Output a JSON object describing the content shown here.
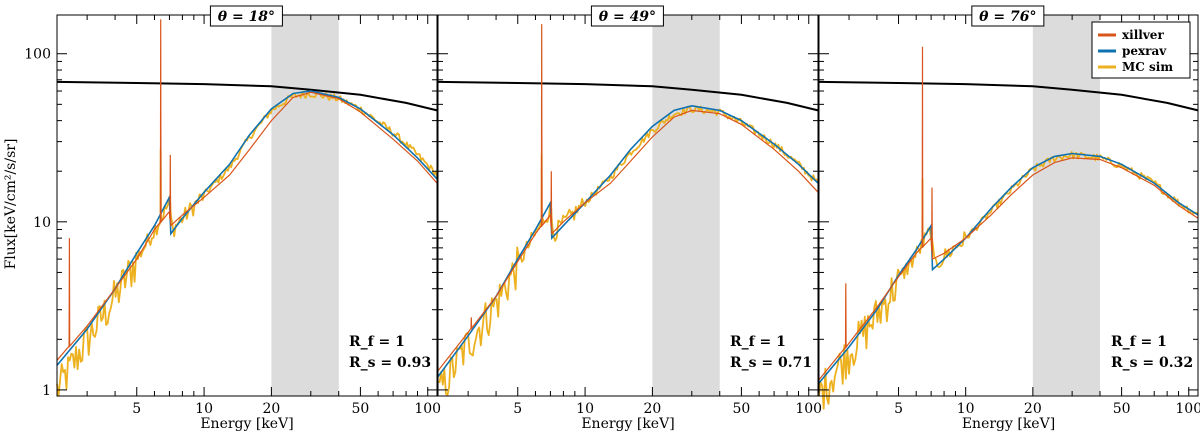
{
  "chart_data": {
    "type": "line",
    "ylabel": "Flux[keV/cm²/s/sr]",
    "xscale": "log",
    "yscale": "log",
    "xlim": [
      2.2,
      110
    ],
    "ylim": [
      0.92,
      170
    ],
    "x_ticks": [
      5,
      10,
      20,
      50,
      100
    ],
    "x_tick_labels": [
      "5",
      "10",
      "20",
      "50",
      "100"
    ],
    "y_ticks": [
      1,
      10,
      100
    ],
    "y_tick_labels": [
      "1",
      "10",
      "100"
    ],
    "band": [
      20,
      40
    ],
    "legend": [
      {
        "name": "xillver",
        "color": "#d9541a"
      },
      {
        "name": "pexrav",
        "color": "#0f72b0"
      },
      {
        "name": "MC sim",
        "color": "#edb120"
      }
    ],
    "black_line": {
      "x": [
        2.2,
        5,
        10,
        20,
        30,
        50,
        80,
        110
      ],
      "y": [
        68,
        67,
        66,
        64,
        61,
        57,
        51,
        46
      ]
    },
    "panels": [
      {
        "title": "θ = 18°",
        "xlabel": "Energy [keV]",
        "ann_rf": "R_f = 1",
        "ann_rs": "R_s = 0.93",
        "pexrav": {
          "x": [
            2.2,
            3,
            4,
            5,
            6,
            7,
            7.1,
            8,
            10,
            13,
            16,
            20,
            25,
            30,
            40,
            50,
            70,
            90,
            110
          ],
          "y": [
            1.4,
            2.3,
            4,
            6.5,
            9.5,
            14,
            8.5,
            10.5,
            15,
            22,
            33,
            47,
            58,
            60,
            55,
            47,
            33,
            24,
            18
          ]
        },
        "xillver": {
          "x": [
            2.2,
            3,
            4,
            5,
            6,
            7,
            7.1,
            8,
            10,
            13,
            16,
            20,
            25,
            30,
            40,
            50,
            70,
            90,
            110
          ],
          "y": [
            1.5,
            2.4,
            4,
            6,
            9,
            11.5,
            9.5,
            11,
            14,
            19,
            27,
            40,
            55,
            59,
            54,
            45,
            31,
            23,
            17
          ]
        },
        "xillver_lines": [
          {
            "x": 2.5,
            "y": 8
          },
          {
            "x": 6.4,
            "y": 160
          },
          {
            "x": 7.06,
            "y": 25
          }
        ],
        "mc": {
          "x": [
            2.2,
            3,
            4,
            5,
            6,
            7,
            7.2,
            8,
            10,
            13,
            16,
            20,
            25,
            30,
            40,
            50,
            70,
            90,
            110
          ],
          "y": [
            1.0,
            2.0,
            3.6,
            6,
            9,
            13,
            9,
            10.5,
            14.5,
            21,
            32,
            46,
            56,
            58,
            54,
            47,
            34,
            25,
            19
          ]
        },
        "mc_lines": [
          {
            "x": 6.4,
            "y": 27
          },
          {
            "x": 7.06,
            "y": 13
          }
        ]
      },
      {
        "title": "θ = 49°",
        "xlabel": "Energy [keV]",
        "ann_rf": "R_f = 1",
        "ann_rs": "R_s = 0.71",
        "pexrav": {
          "x": [
            2.2,
            3,
            4,
            5,
            6,
            7,
            7.1,
            8,
            10,
            13,
            16,
            20,
            25,
            30,
            40,
            50,
            70,
            90,
            110
          ],
          "y": [
            1.2,
            2.1,
            3.6,
            6,
            9,
            13,
            8,
            9.5,
            13,
            19,
            27,
            37,
            46,
            49,
            46,
            40,
            29,
            22,
            17
          ]
        },
        "xillver": {
          "x": [
            2.2,
            3,
            4,
            5,
            6,
            7,
            7.1,
            8,
            10,
            13,
            16,
            20,
            25,
            30,
            40,
            50,
            70,
            90,
            110
          ],
          "y": [
            1.3,
            2.2,
            3.6,
            5.8,
            8.5,
            11,
            8.5,
            10,
            13,
            17,
            23,
            32,
            42,
            46,
            44,
            38,
            27,
            20,
            15
          ]
        },
        "xillver_lines": [
          {
            "x": 3.1,
            "y": 2.7
          },
          {
            "x": 6.4,
            "y": 150
          },
          {
            "x": 7.06,
            "y": 20
          }
        ],
        "mc": {
          "x": [
            2.2,
            3,
            4,
            5,
            6,
            7,
            7.2,
            8,
            10,
            13,
            16,
            20,
            25,
            30,
            40,
            50,
            70,
            90,
            110
          ],
          "y": [
            0.95,
            1.9,
            3.3,
            5.6,
            8.5,
            12,
            8.5,
            9.8,
            13,
            18.5,
            26,
            35,
            44,
            47,
            45,
            39,
            29,
            22,
            17
          ]
        },
        "mc_lines": [
          {
            "x": 6.4,
            "y": 25
          },
          {
            "x": 7.06,
            "y": 12
          }
        ]
      },
      {
        "title": "θ = 76°",
        "xlabel": "Energy [keV]",
        "ann_rf": "R_f = 1",
        "ann_rs": "R_s = 0.32",
        "pexrav": {
          "x": [
            2.2,
            3,
            4,
            5,
            6,
            7,
            7.1,
            8,
            10,
            13,
            16,
            20,
            25,
            30,
            40,
            50,
            70,
            90,
            110
          ],
          "y": [
            1.1,
            1.8,
            3,
            4.8,
            6.8,
            9.5,
            5.2,
            6,
            8,
            12,
            16,
            21,
            24.5,
            25.5,
            24.5,
            22,
            17,
            13,
            11
          ]
        },
        "xillver": {
          "x": [
            2.2,
            3,
            4,
            5,
            6,
            7,
            7.1,
            8,
            10,
            13,
            16,
            20,
            25,
            30,
            40,
            50,
            70,
            90,
            110
          ],
          "y": [
            1.15,
            1.9,
            3.1,
            4.7,
            6.5,
            8,
            6,
            6.5,
            8,
            11,
            14.5,
            19,
            22.5,
            24,
            23.5,
            21,
            16.5,
            12.5,
            10.5
          ]
        },
        "xillver_lines": [
          {
            "x": 2.9,
            "y": 4.3
          },
          {
            "x": 6.4,
            "y": 110
          },
          {
            "x": 7.06,
            "y": 16
          }
        ],
        "mc": {
          "x": [
            2.2,
            3,
            4,
            5,
            6,
            7,
            7.2,
            8,
            10,
            13,
            16,
            20,
            25,
            30,
            40,
            50,
            70,
            90,
            110
          ],
          "y": [
            0.95,
            1.7,
            2.8,
            4.5,
            6.4,
            9,
            5.5,
            6.2,
            8,
            11.5,
            15.5,
            20.5,
            24,
            25,
            24,
            21.5,
            17,
            13,
            11
          ]
        },
        "mc_lines": [
          {
            "x": 6.4,
            "y": 18
          },
          {
            "x": 7.06,
            "y": 8
          }
        ]
      }
    ]
  }
}
